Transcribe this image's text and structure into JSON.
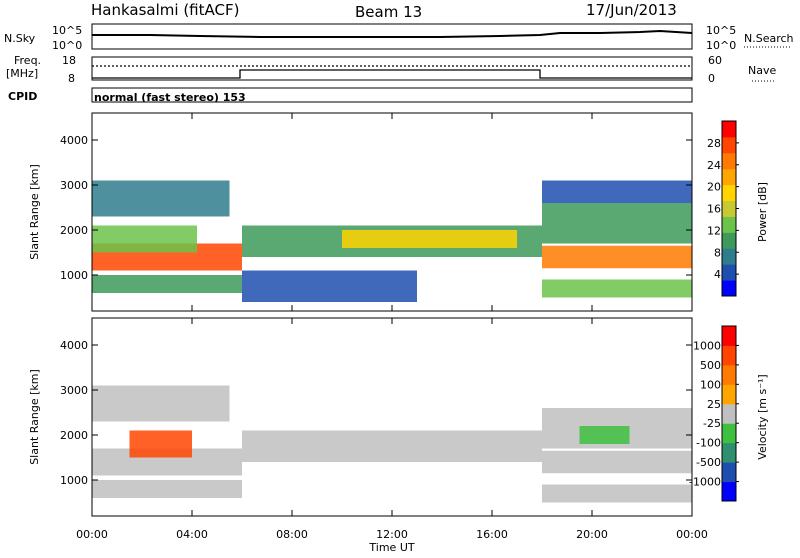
{
  "header": {
    "site": "Hankasalmi (fitACF)",
    "beam": "Beam 13",
    "date": "17/Jun/2013"
  },
  "panels": {
    "noise": {
      "left_label": "N.Sky",
      "right_label": "N.Search",
      "left_ticks": [
        "10^5",
        "10^0"
      ],
      "right_ticks": [
        "10^5",
        "10^0"
      ]
    },
    "freq": {
      "left_label_1": "Freq.",
      "left_label_2": "[MHz]",
      "right_label": "Nave",
      "left_ticks": [
        "18",
        "8"
      ],
      "right_ticks": [
        "60",
        "0"
      ]
    },
    "cpid": {
      "label": "CPID",
      "mode": "normal (fast stereo) 153"
    }
  },
  "chart_data": [
    {
      "type": "heatmap",
      "ylabel": "Slant Range [km]",
      "x_ticks": [
        "00:00",
        "04:00",
        "08:00",
        "12:00",
        "16:00",
        "20:00",
        "00:00"
      ],
      "y_ticks": [
        1000,
        2000,
        3000,
        4000
      ],
      "ylim": [
        200,
        4600
      ],
      "xlim_hours": [
        0,
        24
      ],
      "colorbar": {
        "label": "Power [dB]",
        "ticks": [
          "28",
          "24",
          "20",
          "16",
          "12",
          "8",
          "4"
        ],
        "colors": [
          "#0000ff",
          "#1e4fb0",
          "#2f7d8c",
          "#3d9a5a",
          "#6cc34a",
          "#c8c832",
          "#ffd400",
          "#ffa500",
          "#ff7a00",
          "#ff4500",
          "#ff0000"
        ]
      },
      "bands": [
        {
          "h0": 0,
          "h1": 6,
          "r0": 1100,
          "r1": 1700,
          "level": 9
        },
        {
          "h0": 0,
          "h1": 4.2,
          "r0": 1500,
          "r1": 2100,
          "level": 4
        },
        {
          "h0": 0,
          "h1": 6,
          "r0": 600,
          "r1": 1000,
          "level": 3
        },
        {
          "h0": 0,
          "h1": 5.5,
          "r0": 2300,
          "r1": 3100,
          "level": 2
        },
        {
          "h0": 6,
          "h1": 18,
          "r0": 1400,
          "r1": 2100,
          "level": 3
        },
        {
          "h0": 10,
          "h1": 17,
          "r0": 1600,
          "r1": 2000,
          "level": 6
        },
        {
          "h0": 6,
          "h1": 13,
          "r0": 400,
          "r1": 1100,
          "level": 1
        },
        {
          "h0": 18,
          "h1": 24,
          "r0": 1150,
          "r1": 1650,
          "level": 8
        },
        {
          "h0": 18,
          "h1": 24,
          "r0": 1700,
          "r1": 2600,
          "level": 3
        },
        {
          "h0": 18,
          "h1": 24,
          "r0": 500,
          "r1": 900,
          "level": 4
        },
        {
          "h0": 18,
          "h1": 24,
          "r0": 2600,
          "r1": 3100,
          "level": 1
        }
      ]
    },
    {
      "type": "heatmap",
      "ylabel": "Slant Range [km]",
      "xlabel": "Time UT",
      "x_ticks": [
        "00:00",
        "04:00",
        "08:00",
        "12:00",
        "16:00",
        "20:00",
        "00:00"
      ],
      "y_ticks": [
        1000,
        2000,
        3000,
        4000
      ],
      "ylim": [
        200,
        4600
      ],
      "xlim_hours": [
        0,
        24
      ],
      "colorbar": {
        "label": "Velocity [m s⁻¹]",
        "ticks": [
          "1000",
          "500",
          "100",
          "25",
          "-25",
          "-100",
          "-500",
          "-1000"
        ],
        "colors": [
          "#0000ff",
          "#1e4fb0",
          "#2f8f6f",
          "#40c040",
          "#c0c0c0",
          "#ffa500",
          "#ff7a00",
          "#ff4500",
          "#ff0000"
        ]
      },
      "bands": [
        {
          "h0": 0,
          "h1": 6,
          "r0": 1100,
          "r1": 1700,
          "level": 4
        },
        {
          "h0": 1.5,
          "h1": 4,
          "r0": 1500,
          "r1": 2100,
          "level": 7
        },
        {
          "h0": 0,
          "h1": 6,
          "r0": 600,
          "r1": 1000,
          "level": 4
        },
        {
          "h0": 0,
          "h1": 5.5,
          "r0": 2300,
          "r1": 3100,
          "level": 4
        },
        {
          "h0": 6,
          "h1": 18,
          "r0": 1400,
          "r1": 2100,
          "level": 4
        },
        {
          "h0": 18,
          "h1": 24,
          "r0": 1150,
          "r1": 1650,
          "level": 4
        },
        {
          "h0": 18,
          "h1": 24,
          "r0": 1700,
          "r1": 2600,
          "level": 4
        },
        {
          "h0": 19.5,
          "h1": 21.5,
          "r0": 1800,
          "r1": 2200,
          "level": 3
        },
        {
          "h0": 18,
          "h1": 24,
          "r0": 500,
          "r1": 900,
          "level": 4
        }
      ]
    }
  ]
}
